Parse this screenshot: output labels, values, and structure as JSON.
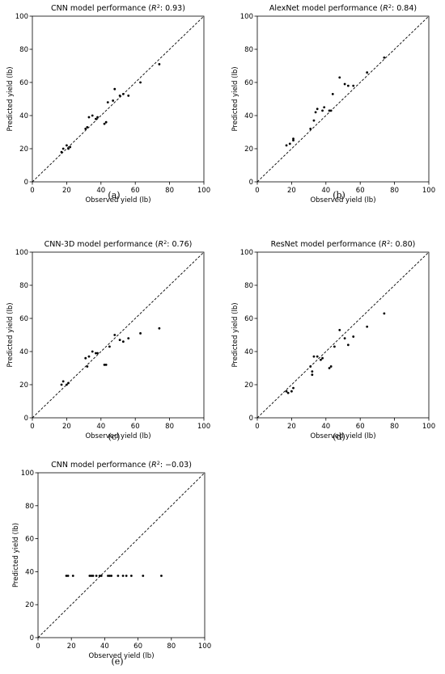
{
  "chart_data": [
    {
      "id": "a",
      "type": "scatter",
      "title_prefix": "CNN model performance (",
      "title_r2": "R",
      "title_suffix": ": 0.93)",
      "xlabel": "Observed yield (lb)",
      "ylabel": "Predicted yield (lb)",
      "xlim": [
        0,
        100
      ],
      "ylim": [
        0,
        100
      ],
      "ticks": [
        0,
        20,
        40,
        60,
        80,
        100
      ],
      "panel_label": "(a)",
      "reference_line": "y = x (dashed)",
      "points": [
        [
          17,
          18
        ],
        [
          18,
          20
        ],
        [
          20,
          22
        ],
        [
          21,
          20
        ],
        [
          22,
          21
        ],
        [
          31,
          32
        ],
        [
          32,
          33
        ],
        [
          33,
          39
        ],
        [
          35,
          40
        ],
        [
          37,
          38
        ],
        [
          38,
          39
        ],
        [
          42,
          35
        ],
        [
          43,
          36
        ],
        [
          44,
          48
        ],
        [
          47,
          49
        ],
        [
          48,
          56
        ],
        [
          51,
          52
        ],
        [
          53,
          53
        ],
        [
          56,
          52
        ],
        [
          63,
          60
        ],
        [
          74,
          71
        ]
      ]
    },
    {
      "id": "b",
      "type": "scatter",
      "title_prefix": "AlexNet model performance (",
      "title_r2": "R",
      "title_suffix": ": 0.84)",
      "xlabel": "Observed yield (lb)",
      "ylabel": "Predicted yield (lb)",
      "xlim": [
        0,
        100
      ],
      "ylim": [
        0,
        100
      ],
      "ticks": [
        0,
        20,
        40,
        60,
        80,
        100
      ],
      "panel_label": "(b)",
      "reference_line": "y = x (dashed)",
      "points": [
        [
          17,
          22
        ],
        [
          19,
          23
        ],
        [
          21,
          25
        ],
        [
          21,
          26
        ],
        [
          31,
          32
        ],
        [
          33,
          37
        ],
        [
          34,
          42
        ],
        [
          35,
          44
        ],
        [
          38,
          43
        ],
        [
          39,
          45
        ],
        [
          42,
          43
        ],
        [
          43,
          43
        ],
        [
          44,
          53
        ],
        [
          48,
          63
        ],
        [
          51,
          59
        ],
        [
          53,
          58
        ],
        [
          56,
          58
        ],
        [
          64,
          66
        ],
        [
          74,
          75
        ]
      ]
    },
    {
      "id": "c",
      "type": "scatter",
      "title_prefix": "CNN-3D model performance (",
      "title_r2": "R",
      "title_suffix": ": 0.76)",
      "xlabel": "Observed yield (lb)",
      "ylabel": "Predicted yield (lb)",
      "xlim": [
        0,
        100
      ],
      "ylim": [
        0,
        100
      ],
      "ticks": [
        0,
        20,
        40,
        60,
        80,
        100
      ],
      "panel_label": "(c)",
      "reference_line": "y = x (dashed)",
      "points": [
        [
          17,
          20
        ],
        [
          18,
          22
        ],
        [
          20,
          20
        ],
        [
          21,
          21
        ],
        [
          31,
          36
        ],
        [
          32,
          31
        ],
        [
          33,
          37
        ],
        [
          35,
          40
        ],
        [
          37,
          39
        ],
        [
          38,
          39
        ],
        [
          42,
          32
        ],
        [
          43,
          32
        ],
        [
          45,
          43
        ],
        [
          48,
          50
        ],
        [
          51,
          47
        ],
        [
          53,
          46
        ],
        [
          56,
          48
        ],
        [
          63,
          51
        ],
        [
          74,
          54
        ]
      ]
    },
    {
      "id": "d",
      "type": "scatter",
      "title_prefix": "ResNet model performance (",
      "title_r2": "R",
      "title_suffix": ": 0.80)",
      "xlabel": "Observed yield (lb)",
      "ylabel": "Predicted yield (lb)",
      "xlim": [
        0,
        100
      ],
      "ylim": [
        0,
        100
      ],
      "ticks": [
        0,
        20,
        40,
        60,
        80,
        100
      ],
      "panel_label": "(d)",
      "reference_line": "y = x (dashed)",
      "points": [
        [
          17,
          16
        ],
        [
          18,
          15
        ],
        [
          20,
          16
        ],
        [
          21,
          18
        ],
        [
          31,
          31
        ],
        [
          32,
          28
        ],
        [
          32,
          26
        ],
        [
          33,
          37
        ],
        [
          35,
          37
        ],
        [
          37,
          35
        ],
        [
          38,
          36
        ],
        [
          42,
          30
        ],
        [
          43,
          31
        ],
        [
          45,
          43
        ],
        [
          48,
          53
        ],
        [
          51,
          48
        ],
        [
          53,
          44
        ],
        [
          56,
          49
        ],
        [
          64,
          55
        ],
        [
          74,
          63
        ]
      ]
    },
    {
      "id": "e",
      "type": "scatter",
      "title_prefix": "CNN model performance (",
      "title_r2": "R",
      "title_suffix": ": −0.03)",
      "xlabel": "Observed yield (lb)",
      "ylabel": "Predicted yield (lb)",
      "xlim": [
        0,
        100
      ],
      "ylim": [
        0,
        100
      ],
      "ticks": [
        0,
        20,
        40,
        60,
        80,
        100
      ],
      "panel_label": "(e)",
      "reference_line": "y = x (dashed)",
      "points": [
        [
          17,
          37.5
        ],
        [
          18,
          37.5
        ],
        [
          21,
          37.5
        ],
        [
          31,
          37.5
        ],
        [
          32,
          37.5
        ],
        [
          33,
          37.5
        ],
        [
          35,
          37.5
        ],
        [
          37,
          37.5
        ],
        [
          38,
          37.5
        ],
        [
          42,
          37.5
        ],
        [
          43,
          37.5
        ],
        [
          44,
          37.5
        ],
        [
          48,
          37.5
        ],
        [
          51,
          37.5
        ],
        [
          53,
          37.5
        ],
        [
          56,
          37.5
        ],
        [
          63,
          37.5
        ],
        [
          74,
          37.5
        ]
      ]
    }
  ]
}
